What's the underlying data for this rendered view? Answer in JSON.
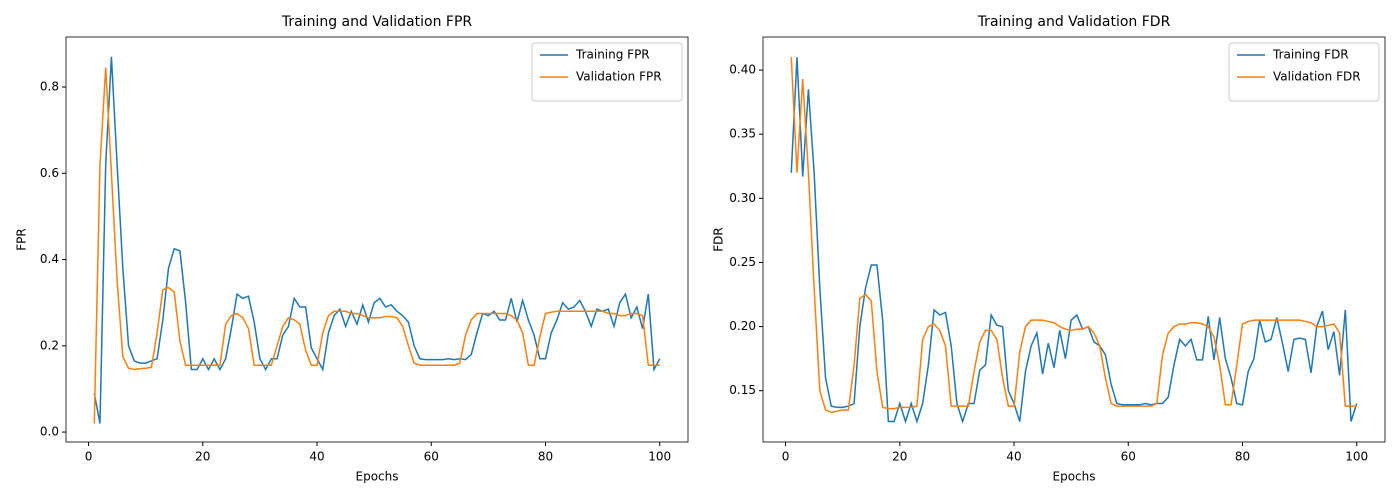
{
  "chart_data": [
    {
      "type": "line",
      "title": "Training and Validation FPR",
      "x_label": "Epochs",
      "y_label": "FPR",
      "x": [
        1,
        2,
        3,
        4,
        5,
        6,
        7,
        8,
        9,
        10,
        11,
        12,
        13,
        14,
        15,
        16,
        17,
        18,
        19,
        20,
        21,
        22,
        23,
        24,
        25,
        26,
        27,
        28,
        29,
        30,
        31,
        32,
        33,
        34,
        35,
        36,
        37,
        38,
        39,
        40,
        41,
        42,
        43,
        44,
        45,
        46,
        47,
        48,
        49,
        50,
        51,
        52,
        53,
        54,
        55,
        56,
        57,
        58,
        59,
        60,
        61,
        62,
        63,
        64,
        65,
        66,
        67,
        68,
        69,
        70,
        71,
        72,
        73,
        74,
        75,
        76,
        77,
        78,
        79,
        80,
        81,
        82,
        83,
        84,
        85,
        86,
        87,
        88,
        89,
        90,
        91,
        92,
        93,
        94,
        95,
        96,
        97,
        98,
        99,
        100
      ],
      "series": [
        {
          "name": "Training FPR",
          "color": "#1f77b4",
          "values": [
            0.09,
            0.02,
            0.62,
            0.87,
            0.62,
            0.38,
            0.2,
            0.165,
            0.16,
            0.16,
            0.165,
            0.17,
            0.26,
            0.38,
            0.425,
            0.42,
            0.3,
            0.145,
            0.145,
            0.17,
            0.145,
            0.17,
            0.145,
            0.17,
            0.24,
            0.32,
            0.31,
            0.315,
            0.255,
            0.17,
            0.145,
            0.17,
            0.17,
            0.225,
            0.245,
            0.31,
            0.29,
            0.29,
            0.195,
            0.17,
            0.145,
            0.23,
            0.27,
            0.285,
            0.245,
            0.28,
            0.25,
            0.295,
            0.255,
            0.3,
            0.31,
            0.29,
            0.295,
            0.28,
            0.27,
            0.255,
            0.2,
            0.17,
            0.168,
            0.168,
            0.168,
            0.168,
            0.17,
            0.168,
            0.17,
            0.168,
            0.18,
            0.23,
            0.275,
            0.27,
            0.28,
            0.26,
            0.26,
            0.31,
            0.255,
            0.305,
            0.26,
            0.225,
            0.17,
            0.17,
            0.23,
            0.26,
            0.3,
            0.285,
            0.29,
            0.305,
            0.28,
            0.245,
            0.285,
            0.28,
            0.285,
            0.245,
            0.3,
            0.32,
            0.265,
            0.29,
            0.24,
            0.32,
            0.145,
            0.17
          ]
        },
        {
          "name": "Validation FPR",
          "color": "#ff7f0e",
          "values": [
            0.02,
            0.62,
            0.845,
            0.6,
            0.35,
            0.175,
            0.148,
            0.145,
            0.147,
            0.148,
            0.15,
            0.23,
            0.33,
            0.335,
            0.325,
            0.21,
            0.155,
            0.155,
            0.155,
            0.155,
            0.155,
            0.155,
            0.155,
            0.25,
            0.27,
            0.275,
            0.265,
            0.24,
            0.155,
            0.155,
            0.155,
            0.155,
            0.2,
            0.245,
            0.265,
            0.26,
            0.25,
            0.19,
            0.155,
            0.155,
            0.23,
            0.27,
            0.28,
            0.28,
            0.28,
            0.275,
            0.275,
            0.27,
            0.265,
            0.265,
            0.265,
            0.268,
            0.268,
            0.265,
            0.245,
            0.2,
            0.16,
            0.155,
            0.155,
            0.155,
            0.155,
            0.155,
            0.155,
            0.155,
            0.16,
            0.225,
            0.26,
            0.275,
            0.275,
            0.275,
            0.275,
            0.275,
            0.275,
            0.27,
            0.26,
            0.23,
            0.155,
            0.155,
            0.22,
            0.275,
            0.278,
            0.28,
            0.28,
            0.28,
            0.28,
            0.28,
            0.28,
            0.28,
            0.28,
            0.28,
            0.275,
            0.275,
            0.27,
            0.27,
            0.275,
            0.275,
            0.27,
            0.155,
            0.155,
            0.155
          ]
        }
      ],
      "xlim": [
        -3.95,
        104.95
      ],
      "xticks": [
        0,
        20,
        40,
        60,
        80,
        100
      ],
      "ylim": [
        -0.023,
        0.916
      ],
      "yticks": [
        {
          "value": 0,
          "label": "0.0"
        },
        0.2,
        0.4,
        0.6,
        0.8
      ],
      "legend": "upper right"
    },
    {
      "type": "line",
      "title": "Training and Validation FDR",
      "x_label": "Epochs",
      "y_label": "FDR",
      "x": [
        1,
        2,
        3,
        4,
        5,
        6,
        7,
        8,
        9,
        10,
        11,
        12,
        13,
        14,
        15,
        16,
        17,
        18,
        19,
        20,
        21,
        22,
        23,
        24,
        25,
        26,
        27,
        28,
        29,
        30,
        31,
        32,
        33,
        34,
        35,
        36,
        37,
        38,
        39,
        40,
        41,
        42,
        43,
        44,
        45,
        46,
        47,
        48,
        49,
        50,
        51,
        52,
        53,
        54,
        55,
        56,
        57,
        58,
        59,
        60,
        61,
        62,
        63,
        64,
        65,
        66,
        67,
        68,
        69,
        70,
        71,
        72,
        73,
        74,
        75,
        76,
        77,
        78,
        79,
        80,
        81,
        82,
        83,
        84,
        85,
        86,
        87,
        88,
        89,
        90,
        91,
        92,
        93,
        94,
        95,
        96,
        97,
        98,
        99,
        100
      ],
      "series": [
        {
          "name": "Training FDR",
          "color": "#1f77b4",
          "values": [
            0.32,
            0.41,
            0.317,
            0.385,
            0.32,
            0.23,
            0.16,
            0.138,
            0.137,
            0.137,
            0.138,
            0.14,
            0.2,
            0.23,
            0.248,
            0.248,
            0.205,
            0.126,
            0.126,
            0.14,
            0.126,
            0.14,
            0.126,
            0.14,
            0.17,
            0.213,
            0.209,
            0.211,
            0.185,
            0.14,
            0.126,
            0.14,
            0.14,
            0.166,
            0.17,
            0.209,
            0.201,
            0.2,
            0.15,
            0.14,
            0.126,
            0.165,
            0.185,
            0.195,
            0.163,
            0.187,
            0.168,
            0.197,
            0.175,
            0.205,
            0.209,
            0.198,
            0.2,
            0.188,
            0.185,
            0.178,
            0.155,
            0.14,
            0.139,
            0.139,
            0.139,
            0.139,
            0.14,
            0.139,
            0.14,
            0.14,
            0.145,
            0.17,
            0.19,
            0.185,
            0.19,
            0.174,
            0.174,
            0.208,
            0.174,
            0.207,
            0.175,
            0.16,
            0.14,
            0.139,
            0.165,
            0.175,
            0.205,
            0.188,
            0.19,
            0.207,
            0.187,
            0.165,
            0.19,
            0.191,
            0.19,
            0.164,
            0.2,
            0.212,
            0.182,
            0.196,
            0.162,
            0.213,
            0.126,
            0.14
          ]
        },
        {
          "name": "Validation FDR",
          "color": "#ff7f0e",
          "values": [
            0.41,
            0.32,
            0.393,
            0.32,
            0.23,
            0.15,
            0.135,
            0.133,
            0.134,
            0.135,
            0.135,
            0.17,
            0.222,
            0.225,
            0.22,
            0.165,
            0.137,
            0.136,
            0.136,
            0.137,
            0.137,
            0.137,
            0.138,
            0.19,
            0.2,
            0.202,
            0.197,
            0.185,
            0.138,
            0.138,
            0.138,
            0.138,
            0.165,
            0.188,
            0.197,
            0.197,
            0.19,
            0.16,
            0.138,
            0.138,
            0.18,
            0.2,
            0.205,
            0.205,
            0.205,
            0.204,
            0.203,
            0.2,
            0.198,
            0.197,
            0.198,
            0.198,
            0.2,
            0.195,
            0.185,
            0.16,
            0.14,
            0.138,
            0.138,
            0.138,
            0.138,
            0.138,
            0.138,
            0.138,
            0.14,
            0.178,
            0.195,
            0.2,
            0.202,
            0.202,
            0.203,
            0.203,
            0.202,
            0.2,
            0.192,
            0.17,
            0.139,
            0.139,
            0.17,
            0.202,
            0.204,
            0.205,
            0.205,
            0.205,
            0.205,
            0.205,
            0.205,
            0.205,
            0.205,
            0.205,
            0.204,
            0.203,
            0.2,
            0.2,
            0.201,
            0.202,
            0.195,
            0.138,
            0.138,
            0.138
          ]
        }
      ],
      "xlim": [
        -3.95,
        104.95
      ],
      "xticks": [
        0,
        20,
        40,
        60,
        80,
        100
      ],
      "ylim": [
        0.11,
        0.4258
      ],
      "yticks": [
        0.15,
        {
          "value": 0.2,
          "label": "0.20"
        },
        0.25,
        {
          "value": 0.3,
          "label": "0.30"
        },
        0.35,
        {
          "value": 0.4,
          "label": "0.40"
        }
      ],
      "legend": "upper right"
    }
  ]
}
